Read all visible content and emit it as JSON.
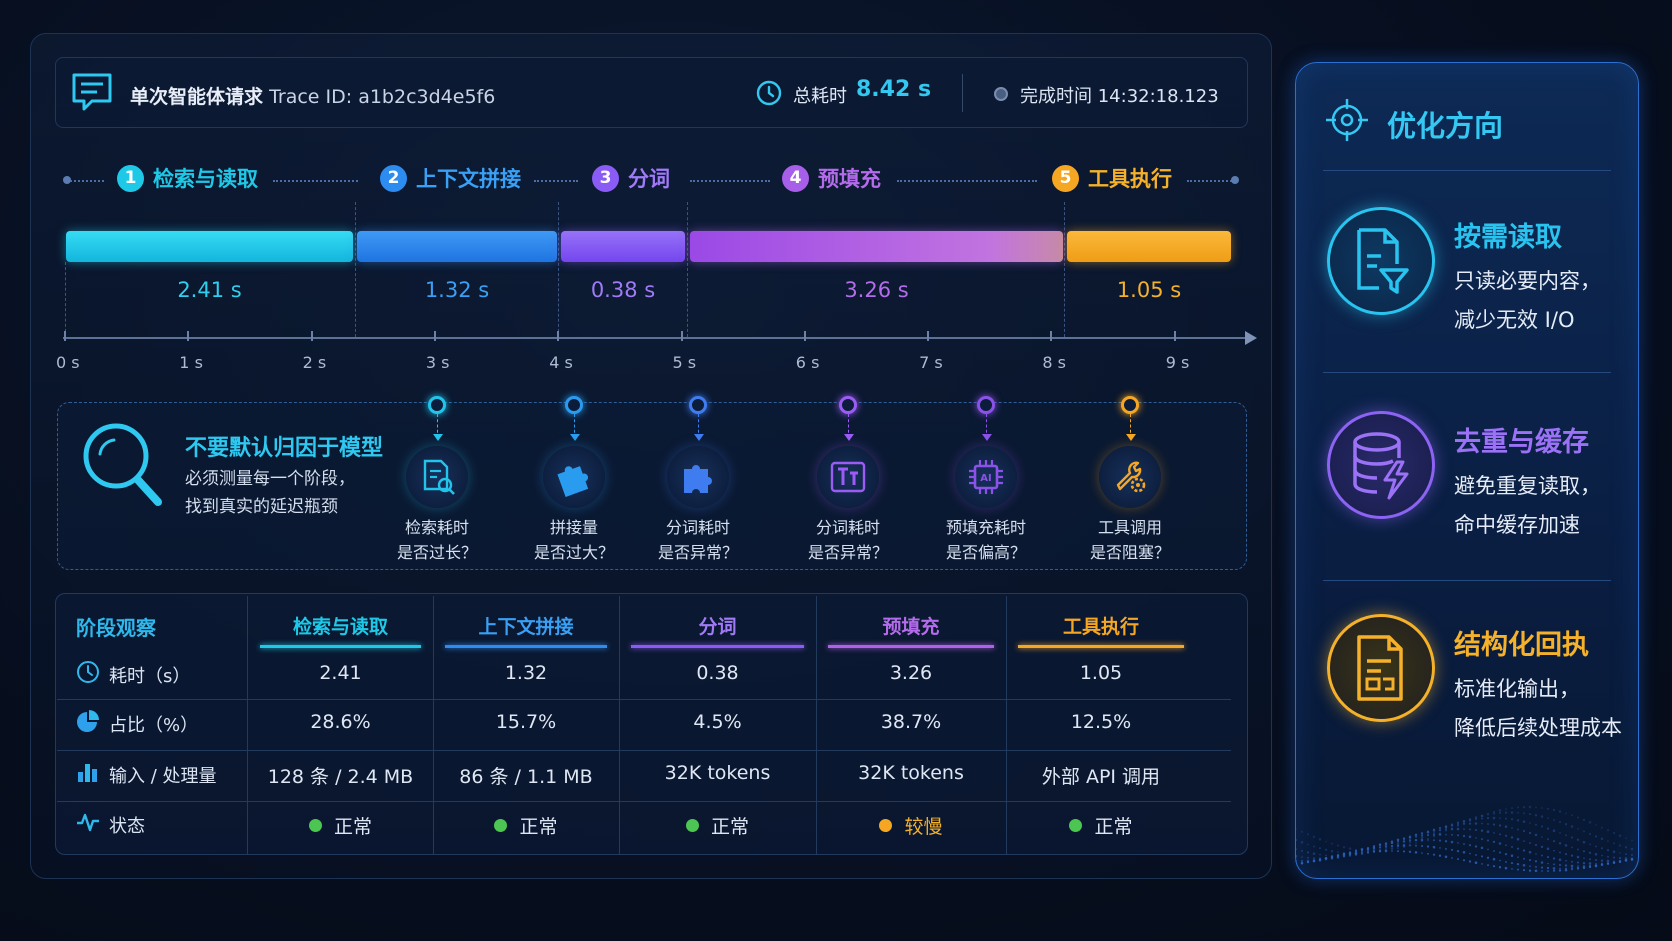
{
  "header": {
    "title": "单次智能体请求",
    "trace_label": "Trace ID:",
    "trace_id": "a1b2c3d4e5f6",
    "total_label": "总耗时",
    "total_value": "8.42 s",
    "done_label": "完成时间 14:32:18.123"
  },
  "stages": [
    {
      "num": "1",
      "name": "检索与读取",
      "duration": "2.41 s",
      "color": "#1ec9e8"
    },
    {
      "num": "2",
      "name": "上下文拼接",
      "duration": "1.32 s",
      "color": "#2d8cf0"
    },
    {
      "num": "3",
      "name": "分词",
      "duration": "0.38 s",
      "color": "#8a5cf5"
    },
    {
      "num": "4",
      "name": "预填充",
      "duration": "3.26 s",
      "color": "#b061e8"
    },
    {
      "num": "5",
      "name": "工具执行",
      "duration": "1.05 s",
      "color": "#f5a623"
    }
  ],
  "axis_ticks": [
    "0 s",
    "1 s",
    "2 s",
    "3 s",
    "4 s",
    "5 s",
    "6 s",
    "7 s",
    "8 s",
    "9 s"
  ],
  "insight": {
    "title": "不要默认归因于模型",
    "desc_line1": "必须测量每一个阶段，",
    "desc_line2": "找到真实的延迟瓶颈",
    "checks": [
      {
        "icon": "document-search-icon",
        "line1": "检索耗时",
        "line2": "是否过长？",
        "color": "#22c4ec"
      },
      {
        "icon": "puzzle-icon",
        "line1": "拼接量",
        "line2": "是否过大？",
        "color": "#2a9cf0"
      },
      {
        "icon": "puzzle-piece-icon",
        "line1": "分词耗时",
        "line2": "是否异常？",
        "color": "#3f7cf0"
      },
      {
        "icon": "text-token-icon",
        "line1": "分词耗时",
        "line2": "是否异常？",
        "color": "#9b5cf5"
      },
      {
        "icon": "ai-chip-icon",
        "line1": "预填充耗时",
        "line2": "是否偏高？",
        "color": "#8a52e8"
      },
      {
        "icon": "wrench-gear-icon",
        "line1": "工具调用",
        "line2": "是否阻塞？",
        "color": "#f5a623"
      }
    ]
  },
  "table": {
    "first_header": "阶段观察",
    "columns": [
      "检索与读取",
      "上下文拼接",
      "分词",
      "预填充",
      "工具执行"
    ],
    "rows": [
      {
        "icon": "clock-icon",
        "label": "耗时（s）",
        "values": [
          "2.41",
          "1.32",
          "0.38",
          "3.26",
          "1.05"
        ]
      },
      {
        "icon": "pie-chart-icon",
        "label": "占比（%）",
        "values": [
          "28.6%",
          "15.7%",
          "4.5%",
          "38.7%",
          "12.5%"
        ]
      },
      {
        "icon": "bar-chart-icon",
        "label": "输入 / 处理量",
        "values": [
          "128 条 / 2.4 MB",
          "86 条 / 1.1 MB",
          "32K tokens",
          "32K tokens",
          "外部 API 调用"
        ]
      },
      {
        "icon": "pulse-icon",
        "label": "状态",
        "values": [
          "正常",
          "正常",
          "正常",
          "较慢",
          "正常"
        ],
        "status_colors": [
          "#4cc552",
          "#4cc552",
          "#4cc552",
          "#f5a623",
          "#4cc552"
        ]
      }
    ]
  },
  "side": {
    "title": "优化方向",
    "items": [
      {
        "icon": "file-filter-icon",
        "head": "按需读取",
        "line1": "只读必要内容，",
        "line2": "减少无效 I/O",
        "color": "#29c3ef"
      },
      {
        "icon": "database-bolt-icon",
        "head": "去重与缓存",
        "line1": "避免重复读取，",
        "line2": "命中缓存加速",
        "color": "#8c63f3"
      },
      {
        "icon": "structured-doc-icon",
        "head": "结构化回执",
        "line1": "标准化输出，",
        "line2": "降低后续处理成本",
        "color": "#f5b12a"
      }
    ]
  }
}
